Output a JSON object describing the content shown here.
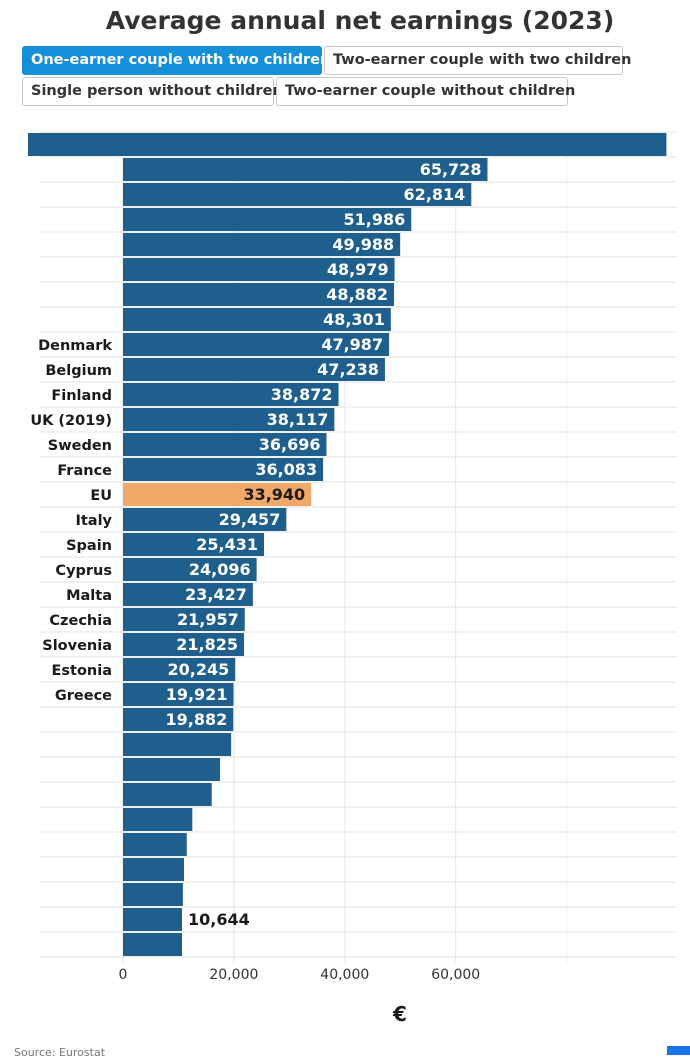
{
  "title": "Average annual net earnings (2023)",
  "tabs": [
    {
      "label": "One-earner couple with two children",
      "active": true
    },
    {
      "label": "Two-earner couple with two children",
      "active": false
    },
    {
      "label": "Single person without children",
      "active": false
    },
    {
      "label": "Two-earner couple without children",
      "active": false
    }
  ],
  "source": "Source: Eurostat",
  "colors": {
    "bar": "#1f5f8e",
    "highlight": "#f0a868",
    "active_tab": "#1590d8"
  },
  "chart_data": {
    "type": "bar",
    "orientation": "horizontal",
    "categories": [
      "",
      "",
      "",
      "",
      "",
      "",
      "",
      "",
      "Denmark",
      "Belgium",
      "Finland",
      "UK (2019)",
      "Sweden",
      "France",
      "EU",
      "Italy",
      "Spain",
      "Cyprus",
      "Malta",
      "Czechia",
      "Slovenia",
      "Estonia",
      "Greece",
      "",
      "",
      "",
      "",
      "",
      "",
      "",
      "",
      "",
      ""
    ],
    "values": [
      98000,
      65728,
      62814,
      51986,
      49988,
      48979,
      48882,
      48301,
      47987,
      47238,
      38872,
      38117,
      36696,
      36083,
      33940,
      29457,
      25431,
      24096,
      23427,
      21957,
      21825,
      20245,
      19921,
      19882,
      19500,
      17500,
      16000,
      12500,
      11500,
      11000,
      10800,
      10644,
      10644
    ],
    "value_labels": [
      "",
      "65,728",
      "62,814",
      "51,986",
      "49,988",
      "48,979",
      "48,882",
      "48,301",
      "47,987",
      "47,238",
      "38,872",
      "38,117",
      "36,696",
      "36,083",
      "33,940",
      "29,457",
      "25,431",
      "24,096",
      "23,427",
      "21,957",
      "21,825",
      "20,245",
      "19,921",
      "19,882",
      "",
      "",
      "",
      "",
      "",
      "",
      "",
      "10,644",
      ""
    ],
    "highlight": "EU",
    "x_ticks": [
      "0",
      "20,000",
      "40,000",
      "60,000"
    ],
    "x_tick_values": [
      0,
      20000,
      40000,
      60000
    ],
    "xlabel": "€",
    "xlim": [
      0,
      100000
    ],
    "grid": true
  }
}
